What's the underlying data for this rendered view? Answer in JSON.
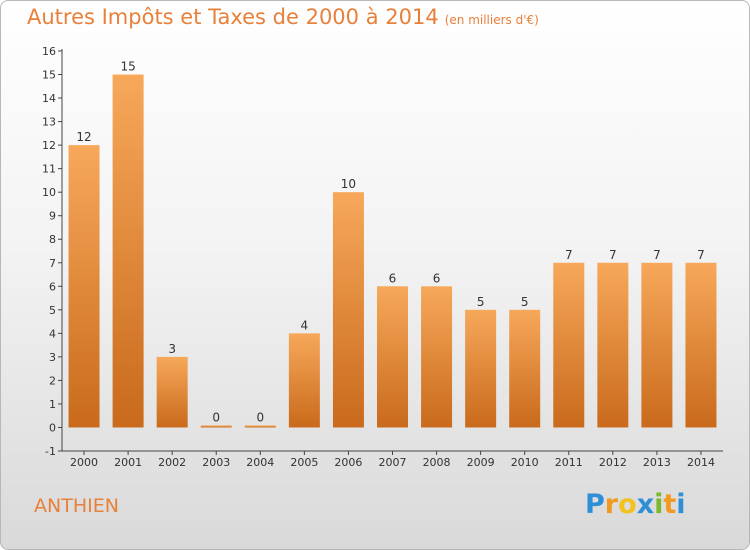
{
  "header": {
    "title": "Autres Impôts et Taxes de 2000 à 2014",
    "unit": "(en milliers d'€)"
  },
  "footer": {
    "commune": "ANTHIEN",
    "logo_letters": [
      "P",
      "r",
      "o",
      "x",
      "i",
      "t",
      "i"
    ],
    "logo_colors": [
      "#2e8fd6",
      "#f29a1f",
      "#f2c21f",
      "#2e8fd6",
      "#7ab82e",
      "#f29a1f",
      "#2e8fd6"
    ]
  },
  "colors": {
    "bar_top": "#f7a85a",
    "bar_bottom": "#c96a1c",
    "text": "#e8803a"
  },
  "chart_data": {
    "type": "bar",
    "title": "Autres Impôts et Taxes de 2000 à 2014",
    "categories": [
      "2000",
      "2001",
      "2002",
      "2003",
      "2004",
      "2005",
      "2006",
      "2007",
      "2008",
      "2009",
      "2010",
      "2011",
      "2012",
      "2013",
      "2014"
    ],
    "values": [
      12,
      15,
      3,
      0,
      0,
      4,
      10,
      6,
      6,
      5,
      5,
      7,
      7,
      7,
      7
    ],
    "data_labels": [
      "12",
      "15",
      "3",
      "0",
      "0",
      "4",
      "10",
      "6",
      "6",
      "5",
      "5",
      "7",
      "7",
      "7",
      "7"
    ],
    "ylim": [
      -1,
      16
    ],
    "yticks": [
      -1,
      0,
      1,
      2,
      3,
      4,
      5,
      6,
      7,
      8,
      9,
      10,
      11,
      12,
      13,
      14,
      15,
      16
    ],
    "grid": false,
    "xlabel": "",
    "ylabel": ""
  }
}
